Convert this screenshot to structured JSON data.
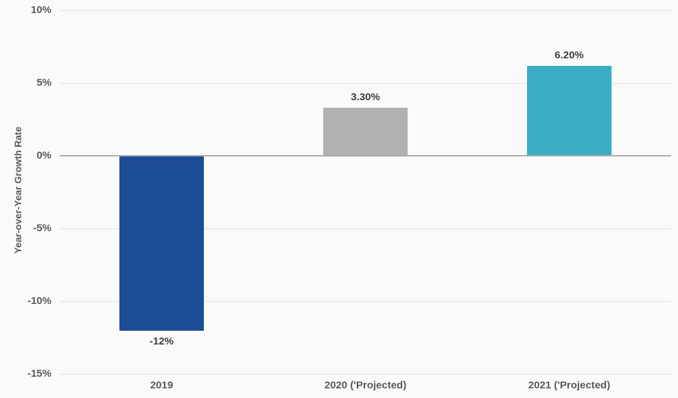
{
  "chart_data": {
    "type": "bar",
    "categories": [
      "2019",
      "2020 ('Projected)",
      "2021 ('Projected)"
    ],
    "values": [
      -12,
      3.3,
      6.2
    ],
    "value_labels": [
      "-12%",
      "3.30%",
      "6.20%"
    ],
    "bar_colors": [
      "#1C4C96",
      "#B1B1B1",
      "#3AACC4"
    ],
    "title": "",
    "xlabel": "",
    "ylabel": "Year-over-Year Growth Rate",
    "ylim": [
      -15,
      10
    ],
    "ytick_step": 5,
    "yticks": [
      10,
      5,
      0,
      -5,
      -10,
      -15
    ],
    "ytick_labels": [
      "10%",
      "5%",
      "0%",
      "-5%",
      "-10%",
      "-15%"
    ],
    "grid": true,
    "legend": false
  },
  "colors": {
    "background": "#FAFAFA",
    "gridline": "#E2E2E2",
    "zero_line": "#ACACAC",
    "tick_text": "#595959",
    "value_text": "#3D3D3D"
  }
}
